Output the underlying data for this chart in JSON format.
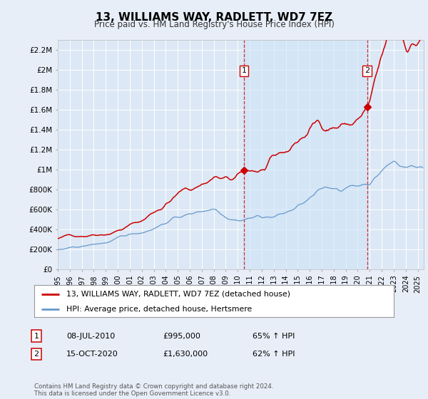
{
  "title": "13, WILLIAMS WAY, RADLETT, WD7 7EZ",
  "subtitle": "Price paid vs. HM Land Registry's House Price Index (HPI)",
  "ylim": [
    0,
    2300000
  ],
  "yticks": [
    0,
    200000,
    400000,
    600000,
    800000,
    1000000,
    1200000,
    1400000,
    1600000,
    1800000,
    2000000,
    2200000
  ],
  "ytick_labels": [
    "£0",
    "£200K",
    "£400K",
    "£600K",
    "£800K",
    "£1M",
    "£1.2M",
    "£1.4M",
    "£1.6M",
    "£1.8M",
    "£2M",
    "£2.2M"
  ],
  "xlim_start": 1995.0,
  "xlim_end": 2025.5,
  "background_color": "#e8eef8",
  "plot_bg_color": "#dce8f5",
  "grid_color": "#ffffff",
  "highlight_color": "#d0e4f7",
  "red_line_color": "#cc0000",
  "blue_line_color": "#6699cc",
  "purchase1_x": 2010.52,
  "purchase1_y": 995000,
  "purchase1_label": "1",
  "purchase1_date": "08-JUL-2010",
  "purchase1_price": "£995,000",
  "purchase1_hpi": "65% ↑ HPI",
  "purchase2_x": 2020.79,
  "purchase2_y": 1630000,
  "purchase2_label": "2",
  "purchase2_date": "15-OCT-2020",
  "purchase2_price": "£1,630,000",
  "purchase2_hpi": "62% ↑ HPI",
  "legend_line1": "13, WILLIAMS WAY, RADLETT, WD7 7EZ (detached house)",
  "legend_line2": "HPI: Average price, detached house, Hertsmere",
  "footer": "Contains HM Land Registry data © Crown copyright and database right 2024.\nThis data is licensed under the Open Government Licence v3.0.",
  "xtick_years": [
    1995,
    1996,
    1997,
    1998,
    1999,
    2000,
    2001,
    2002,
    2003,
    2004,
    2005,
    2006,
    2007,
    2008,
    2009,
    2010,
    2011,
    2012,
    2013,
    2014,
    2015,
    2016,
    2017,
    2018,
    2019,
    2020,
    2021,
    2022,
    2023,
    2024,
    2025
  ]
}
